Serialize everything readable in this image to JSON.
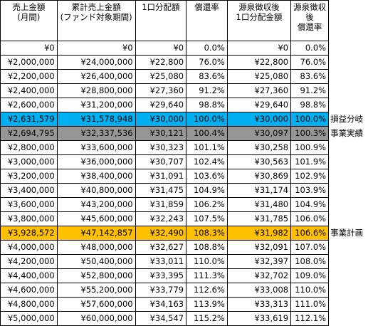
{
  "table": {
    "header": [
      [
        "売上金額",
        "(月間)"
      ],
      [
        "累計売上金額",
        "(ファンド対象期間)"
      ],
      [
        "1口分配額"
      ],
      [
        "償還率"
      ],
      [
        "源泉徴収後",
        "1口分配金額"
      ],
      [
        "源泉徴収",
        "後",
        "償還率"
      ]
    ],
    "rows": [
      {
        "cells": [
          "¥0",
          "¥0",
          "¥0",
          "0.0%",
          "¥0",
          "0.0%"
        ]
      },
      {
        "cells": [
          "¥2,000,000",
          "¥24,000,000",
          "¥22,800",
          "76.0%",
          "¥22,800",
          "76.0%"
        ]
      },
      {
        "cells": [
          "¥2,200,000",
          "¥26,400,000",
          "¥25,080",
          "83.6%",
          "¥25,080",
          "83.6%"
        ]
      },
      {
        "cells": [
          "¥2,400,000",
          "¥28,800,000",
          "¥27,360",
          "91.2%",
          "¥27,360",
          "91.2%"
        ]
      },
      {
        "cells": [
          "¥2,600,000",
          "¥31,200,000",
          "¥29,640",
          "98.8%",
          "¥29,640",
          "98.8%"
        ]
      },
      {
        "cells": [
          "¥2,631,579",
          "¥31,578,948",
          "¥30,000",
          "100.0%",
          "¥30,000",
          "100.0%"
        ],
        "color": "#00b0f0",
        "note": "損益分岐"
      },
      {
        "cells": [
          "¥2,694,795",
          "¥32,337,536",
          "¥30,121",
          "100.4%",
          "¥30,097",
          "100.3%"
        ],
        "color": "#969696",
        "note": "事業実績"
      },
      {
        "cells": [
          "¥2,800,000",
          "¥33,600,000",
          "¥30,323",
          "101.1%",
          "¥30,258",
          "100.9%"
        ]
      },
      {
        "cells": [
          "¥3,000,000",
          "¥36,000,000",
          "¥30,707",
          "102.4%",
          "¥30,563",
          "101.9%"
        ]
      },
      {
        "cells": [
          "¥3,200,000",
          "¥38,400,000",
          "¥31,091",
          "103.6%",
          "¥30,869",
          "102.9%"
        ]
      },
      {
        "cells": [
          "¥3,400,000",
          "¥40,800,000",
          "¥31,475",
          "104.9%",
          "¥31,174",
          "103.9%"
        ]
      },
      {
        "cells": [
          "¥3,600,000",
          "¥43,200,000",
          "¥31,859",
          "106.2%",
          "¥31,480",
          "104.9%"
        ]
      },
      {
        "cells": [
          "¥3,800,000",
          "¥45,600,000",
          "¥32,243",
          "107.5%",
          "¥31,785",
          "106.0%"
        ]
      },
      {
        "cells": [
          "¥3,928,572",
          "¥47,142,857",
          "¥32,490",
          "108.3%",
          "¥31,982",
          "106.6%"
        ],
        "color": "#ffc000",
        "note": "事業計画"
      },
      {
        "cells": [
          "¥4,000,000",
          "¥48,000,000",
          "¥32,627",
          "108.8%",
          "¥32,091",
          "107.0%"
        ]
      },
      {
        "cells": [
          "¥4,200,000",
          "¥50,400,000",
          "¥33,011",
          "110.0%",
          "¥32,397",
          "108.0%"
        ]
      },
      {
        "cells": [
          "¥4,400,000",
          "¥52,800,000",
          "¥33,395",
          "111.3%",
          "¥32,702",
          "109.0%"
        ]
      },
      {
        "cells": [
          "¥4,600,000",
          "¥55,200,000",
          "¥33,779",
          "112.6%",
          "¥33,008",
          "110.0%"
        ]
      },
      {
        "cells": [
          "¥4,800,000",
          "¥57,600,000",
          "¥34,163",
          "113.9%",
          "¥33,313",
          "111.0%"
        ]
      },
      {
        "cells": [
          "¥5,000,000",
          "¥60,000,000",
          "¥34,547",
          "115.2%",
          "¥33,619",
          "112.1%"
        ]
      }
    ]
  }
}
